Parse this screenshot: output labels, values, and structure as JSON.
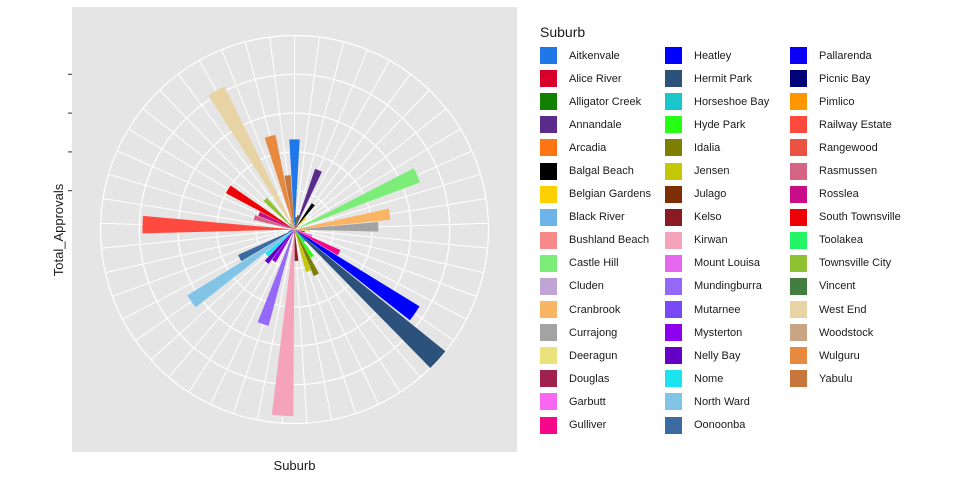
{
  "chart_data": {
    "type": "bar",
    "coord": "polar",
    "xlabel": "Suburb",
    "ylabel": "Total_Approvals",
    "legend_title": "Suburb",
    "legend_position": "right",
    "grid": true,
    "categories": [
      "Aitkenvale",
      "Alice River",
      "Alligator Creek",
      "Annandale",
      "Arcadia",
      "Balgal Beach",
      "Belgian Gardens",
      "Black River",
      "Bushland Beach",
      "Castle Hill",
      "Cluden",
      "Cranbrook",
      "Currajong",
      "Deeragun",
      "Douglas",
      "Garbutt",
      "Gulliver",
      "Heatley",
      "Hermit Park",
      "Horseshoe Bay",
      "Hyde Park",
      "Idalia",
      "Jensen",
      "Julago",
      "Kelso",
      "Kirwan",
      "Mount Louisa",
      "Mundingburra",
      "Mutarnee",
      "Mysterton",
      "Nelly Bay",
      "Nome",
      "North Ward",
      "Oonoonba",
      "Pallarenda",
      "Picnic Bay",
      "Pimlico",
      "Railway Estate",
      "Rangewood",
      "Rasmussen",
      "Rosslea",
      "South Townsville",
      "Toolakea",
      "Townsville City",
      "Vincent",
      "West End",
      "Woodstock",
      "Wulguru",
      "Yabulu"
    ],
    "values": [
      86,
      12,
      14,
      61,
      5,
      30,
      15,
      5,
      2,
      128,
      2,
      92,
      80,
      15,
      10,
      18,
      48,
      140,
      185,
      15,
      31,
      48,
      42,
      4,
      30,
      178,
      3,
      95,
      5,
      36,
      41,
      36,
      120,
      59,
      6,
      4,
      2,
      145,
      3,
      40,
      37,
      74,
      2,
      40,
      7,
      152,
      10,
      92,
      52
    ],
    "colors": [
      "#1f77e8",
      "#d7002a",
      "#118000",
      "#592b8a",
      "#ff7514",
      "#000000",
      "#ffd000",
      "#6fb4e8",
      "#f88a8a",
      "#7ded7a",
      "#c0a5d4",
      "#f9b464",
      "#a3a3a3",
      "#ebe27b",
      "#a0214e",
      "#f867f1",
      "#f60688",
      "#0000ff",
      "#2c527b",
      "#1ac6ca",
      "#26ff14",
      "#7e7e00",
      "#c4c804",
      "#7d2e05",
      "#891b22",
      "#f5a3bb",
      "#e768ee",
      "#9469f9",
      "#7949f6",
      "#8c00ec",
      "#6401c4",
      "#1be4ee",
      "#82c4e6",
      "#3b6aa3",
      "#0a00f5",
      "#020178",
      "#ff9702",
      "#ff4b3f",
      "#ea5344",
      "#d56384",
      "#c90d88",
      "#ee0104",
      "#23f567",
      "#8fc233",
      "#437d40",
      "#e8d3a4",
      "#c8a685",
      "#e78a3f",
      "#c7773b"
    ]
  }
}
